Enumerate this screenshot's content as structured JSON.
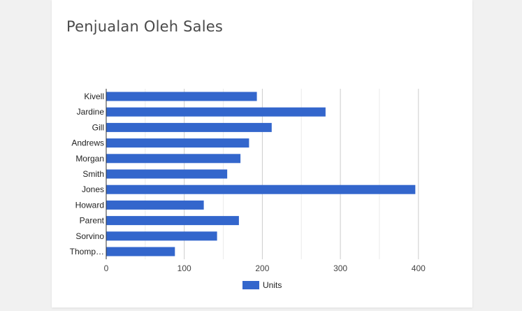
{
  "card": {
    "title": "Penjualan Oleh Sales"
  },
  "chart_data": {
    "type": "bar",
    "orientation": "horizontal",
    "title": "Penjualan Oleh Sales",
    "categories": [
      "Kivell",
      "Jardine",
      "Gill",
      "Andrews",
      "Morgan",
      "Smith",
      "Jones",
      "Howard",
      "Parent",
      "Sorvino",
      "Thomp…"
    ],
    "series": [
      {
        "name": "Units",
        "values": [
          193,
          281,
          212,
          183,
          172,
          155,
          396,
          125,
          170,
          142,
          88
        ],
        "color": "#3366cc"
      }
    ],
    "xlim": [
      0,
      450
    ],
    "xticks": [
      0,
      100,
      200,
      300,
      400
    ],
    "grid": true,
    "legend": "bottom"
  }
}
